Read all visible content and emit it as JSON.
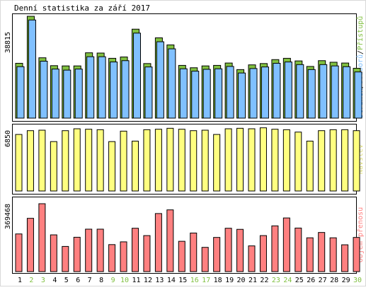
{
  "title": "Denní statistika za září 2017",
  "colors": {
    "background": "#ffffff",
    "panel_border": "#000000",
    "hits": "#80c040",
    "files": "#80c0ff",
    "pages": "#0080ff",
    "visits": "#ffff80",
    "kbytes": "#ff8080",
    "weekend_label": "#80c040",
    "weekday_label": "#000000",
    "visits_label": "#d8d878",
    "hits_label": "#80c040",
    "files_label": "#80c0ff",
    "pages_label": "#0080ff",
    "kbytes_label": "#ff8080"
  },
  "x_axis": {
    "days": [
      "1",
      "2",
      "3",
      "4",
      "5",
      "6",
      "7",
      "8",
      "9",
      "10",
      "11",
      "12",
      "13",
      "14",
      "15",
      "16",
      "17",
      "18",
      "19",
      "20",
      "21",
      "22",
      "23",
      "24",
      "25",
      "26",
      "27",
      "28",
      "29",
      "30"
    ],
    "weekend_days": [
      "2",
      "3",
      "9",
      "10",
      "16",
      "17",
      "23",
      "24",
      "30"
    ]
  },
  "chart_data": [
    {
      "type": "bar",
      "name": "hits-files-pages",
      "max_label": "38815",
      "ylim": [
        0,
        38815
      ],
      "legend": {
        "pages": "Stránek",
        "sep1": "/",
        "files": "Souborů",
        "sep2": "/",
        "hits": "Přístupů"
      },
      "series": [
        {
          "name": "Přístupů",
          "values": [
            20900,
            38815,
            23000,
            20000,
            19900,
            19900,
            24900,
            24800,
            22800,
            23300,
            33900,
            20800,
            30600,
            27900,
            20100,
            19200,
            19900,
            20100,
            21000,
            18500,
            20300,
            20800,
            22300,
            22800,
            21800,
            19700,
            21900,
            21300,
            21000,
            19000
          ]
        },
        {
          "name": "Souborů",
          "values": [
            19600,
            37400,
            21700,
            18700,
            18300,
            18700,
            23400,
            23400,
            21400,
            21900,
            32400,
            19500,
            29100,
            26400,
            18800,
            17900,
            18600,
            18800,
            19700,
            17200,
            18900,
            19500,
            20900,
            21400,
            20400,
            18500,
            20400,
            19900,
            19600,
            17600
          ]
        }
      ]
    },
    {
      "type": "bar",
      "name": "visits",
      "max_label": "6850",
      "ylim": [
        0,
        6850
      ],
      "legend": "Návštěv",
      "series": [
        {
          "name": "Návštěv",
          "values": [
            5950,
            6350,
            6400,
            5200,
            6350,
            6550,
            6500,
            6450,
            5200,
            6300,
            5250,
            6450,
            6500,
            6600,
            6500,
            6350,
            6400,
            5950,
            6550,
            6600,
            6550,
            6650,
            6500,
            6450,
            6200,
            5250,
            6350,
            6450,
            6450,
            6350
          ]
        }
      ]
    },
    {
      "type": "bar",
      "name": "kbytes",
      "max_label": "369468",
      "ylim": [
        0,
        369468
      ],
      "legend": "Objem přenosu",
      "series": [
        {
          "name": "Objem přenosu",
          "values": [
            205000,
            290000,
            369468,
            200000,
            137000,
            187000,
            231000,
            231000,
            147000,
            162000,
            236000,
            196000,
            316000,
            336000,
            165000,
            210000,
            132000,
            186000,
            236000,
            230000,
            140000,
            196000,
            249000,
            292000,
            237000,
            184000,
            213000,
            184000,
            146000,
            186000
          ]
        }
      ]
    }
  ]
}
